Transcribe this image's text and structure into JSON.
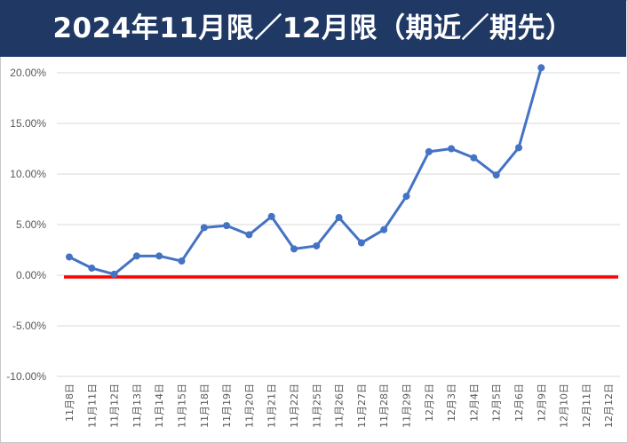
{
  "title": "2024年11月限／12月限（期近／期先）",
  "colors": {
    "title_background": "#1f3864",
    "title_text": "#ffffff",
    "series_line": "#4472c4",
    "baseline": "#ff0000",
    "grid": "#d9d9d9",
    "tick_text": "#595959"
  },
  "chart_data": {
    "type": "line",
    "title": "2024年11月限／12月限（期近／期先）",
    "xlabel": "",
    "ylabel": "",
    "ylim": [
      -0.1,
      0.2
    ],
    "y_ticks": [
      "20.00%",
      "15.00%",
      "10.00%",
      "5.00%",
      "0.00%",
      "-5.00%",
      "-10.00%"
    ],
    "y_tick_values": [
      0.2,
      0.15,
      0.1,
      0.05,
      0.0,
      -0.05,
      -0.1
    ],
    "grid": true,
    "legend": "none",
    "categories": [
      "11月8日",
      "11月11日",
      "11月12日",
      "11月13日",
      "11月14日",
      "11月15日",
      "11月18日",
      "11月19日",
      "11月20日",
      "11月21日",
      "11月22日",
      "11月25日",
      "11月26日",
      "11月27日",
      "11月28日",
      "11月29日",
      "12月2日",
      "12月3日",
      "12月4日",
      "12月5日",
      "12月6日",
      "12月9日",
      "12月10日",
      "12月11日",
      "12月12日"
    ],
    "series": [
      {
        "values": [
          0.018,
          0.007,
          0.001,
          0.019,
          0.019,
          0.014,
          0.047,
          0.049,
          0.04,
          0.058,
          0.026,
          0.029,
          0.057,
          0.032,
          0.045,
          0.078,
          0.122,
          0.125,
          0.116,
          0.099,
          0.126,
          0.205,
          null,
          null,
          null
        ]
      }
    ],
    "reference_line": {
      "value": 0.0
    }
  }
}
